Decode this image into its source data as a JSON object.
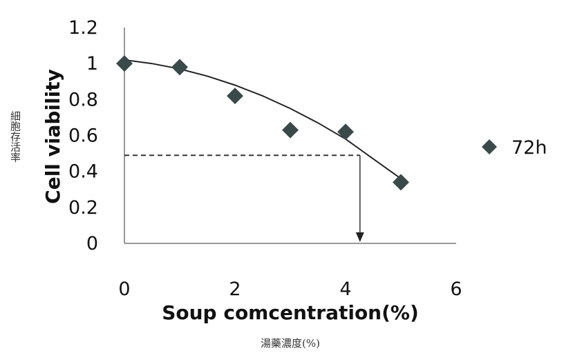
{
  "chart_data": {
    "type": "scatter",
    "title": "",
    "xlabel": "Soup comcentration(%)",
    "xlabel_sub": "湯藥濃度(%)",
    "ylabel": "Cell viability",
    "ylabel_sub": "細胞存活率",
    "xlim": [
      0,
      6
    ],
    "ylim": [
      0,
      1.2
    ],
    "x_ticks": [
      "0",
      "2",
      "4",
      "6"
    ],
    "y_ticks": [
      "0",
      "0.2",
      "0.4",
      "0.6",
      "0.8",
      "1",
      "1.2"
    ],
    "grid": false,
    "legend_position": "right",
    "series": [
      {
        "name": "72h",
        "marker": "diamond",
        "color": "#3a4a4a",
        "x": [
          0,
          1,
          2,
          3,
          4,
          5
        ],
        "y": [
          1.0,
          0.98,
          0.82,
          0.63,
          0.62,
          0.34
        ]
      }
    ],
    "trendline": {
      "type": "polynomial",
      "color": "#222222",
      "x": [
        0,
        0.5,
        1,
        1.5,
        2,
        2.5,
        3,
        3.5,
        4,
        4.5,
        5
      ],
      "y": [
        1.02,
        1.0,
        0.97,
        0.93,
        0.88,
        0.82,
        0.75,
        0.67,
        0.58,
        0.47,
        0.36
      ]
    },
    "reference": {
      "y": 0.49,
      "x": 4.26,
      "style": "dashed",
      "arrow": "down"
    }
  }
}
